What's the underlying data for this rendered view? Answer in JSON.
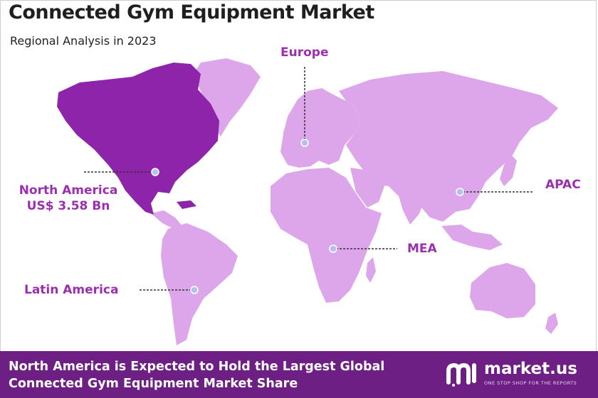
{
  "header": {
    "title": "Connected Gym Equipment Market",
    "subtitle": "Regional Analysis in 2023"
  },
  "regions": {
    "north_america": {
      "name": "North America",
      "value": "US$ 3.58 Bn"
    },
    "europe": {
      "name": "Europe"
    },
    "apac": {
      "name": "APAC"
    },
    "mea": {
      "name": "MEA"
    },
    "latin_america": {
      "name": "Latin America"
    }
  },
  "footer": {
    "line1": "North America is Expected to Hold the Largest Global",
    "line2": "Connected Gym Equipment Market Share"
  },
  "brand": {
    "name": "market.us",
    "tagline": "ONE STOP SHOP FOR THE REPORTS"
  },
  "colors": {
    "highlight_region": "#8e24aa",
    "other_regions": "#dda6ea",
    "label": "#9c2fb0",
    "footer_bg": "#6d1f83"
  }
}
